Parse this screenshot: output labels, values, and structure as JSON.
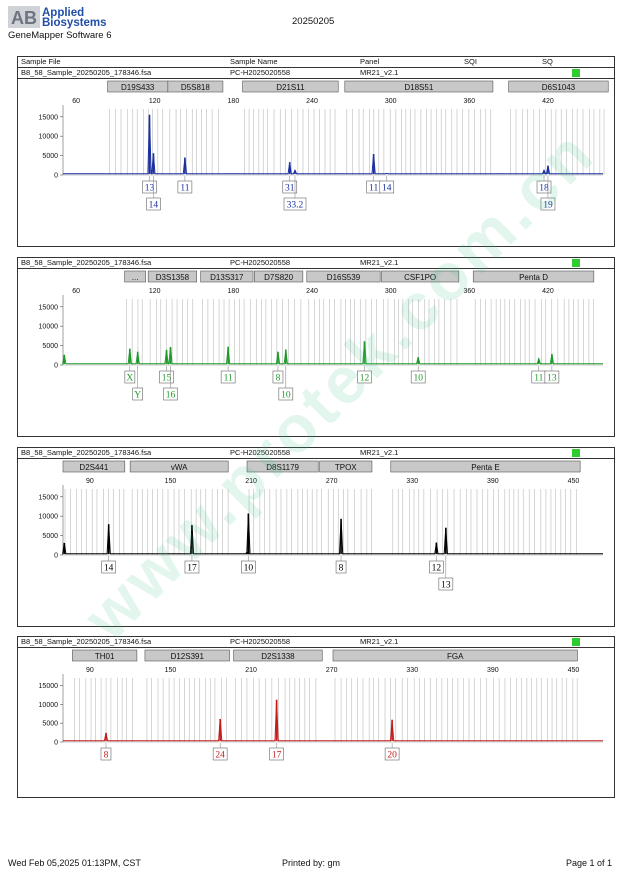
{
  "header": {
    "logo_text": "AB",
    "company_line1": "Applied",
    "company_line2": "Biosystems",
    "software": "GeneMapper Software 6",
    "run_date": "20250205"
  },
  "columns": {
    "sample_file": "Sample File",
    "sample_name": "Sample Name",
    "panel": "Panel",
    "sqi": "SQI",
    "sq": "SQ"
  },
  "sample": {
    "file": "B8_58_Sample_20250205_178346.fsa",
    "name": "PC-H2025020558",
    "panel": "MR21_v2.1",
    "sq_color": "#2ecc2e"
  },
  "chart_data": [
    {
      "type": "line",
      "dye": "blue",
      "color": "#1a2fa0",
      "xlim": [
        50,
        462
      ],
      "x_ticks": [
        60,
        120,
        180,
        240,
        300,
        360,
        420
      ],
      "ylim": [
        0,
        17000
      ],
      "y_ticks": [
        0,
        5000,
        10000,
        15000
      ],
      "markers": [
        {
          "label": "D19S433",
          "from": 84,
          "to": 130
        },
        {
          "label": "D5S818",
          "from": 130,
          "to": 172
        },
        {
          "label": "D21S11",
          "from": 187,
          "to": 260
        },
        {
          "label": "D18S51",
          "from": 265,
          "to": 378
        },
        {
          "label": "D6S1043",
          "from": 390,
          "to": 466
        }
      ],
      "peaks": [
        {
          "x": 116,
          "y": 15500
        },
        {
          "x": 119,
          "y": 5600
        },
        {
          "x": 143,
          "y": 4500
        },
        {
          "x": 223,
          "y": 3300
        },
        {
          "x": 227,
          "y": 1200
        },
        {
          "x": 287,
          "y": 5400
        },
        {
          "x": 297,
          "y": 400
        },
        {
          "x": 417,
          "y": 1200
        },
        {
          "x": 420,
          "y": 2400
        }
      ],
      "calls": [
        {
          "label": "13",
          "x": 116,
          "row": 0
        },
        {
          "label": "14",
          "x": 119,
          "row": 1
        },
        {
          "label": "11",
          "x": 143,
          "row": 0
        },
        {
          "label": "31",
          "x": 223,
          "row": 0
        },
        {
          "label": "33.2",
          "x": 227,
          "row": 1
        },
        {
          "label": "11",
          "x": 287,
          "row": 0
        },
        {
          "label": "14",
          "x": 297,
          "row": 0
        },
        {
          "label": "18",
          "x": 417,
          "row": 0
        },
        {
          "label": "19",
          "x": 420,
          "row": 1
        }
      ]
    },
    {
      "type": "line",
      "dye": "green",
      "color": "#1f9a2a",
      "xlim": [
        50,
        462
      ],
      "x_ticks": [
        60,
        120,
        180,
        240,
        300,
        360,
        420
      ],
      "ylim": [
        0,
        17000
      ],
      "y_ticks": [
        0,
        5000,
        10000,
        15000
      ],
      "markers": [
        {
          "label": "...",
          "from": 97,
          "to": 113
        },
        {
          "label": "D3S1358",
          "from": 115,
          "to": 152
        },
        {
          "label": "D13S317",
          "from": 155,
          "to": 195
        },
        {
          "label": "D7S820",
          "from": 196,
          "to": 233
        },
        {
          "label": "D16S539",
          "from": 236,
          "to": 292
        },
        {
          "label": "CSF1PO",
          "from": 293,
          "to": 352
        },
        {
          "label": "Penta D",
          "from": 363,
          "to": 455
        }
      ],
      "peaks": [
        {
          "x": 51,
          "y": 2600
        },
        {
          "x": 101,
          "y": 4200
        },
        {
          "x": 107,
          "y": 3400
        },
        {
          "x": 129,
          "y": 3900
        },
        {
          "x": 132,
          "y": 4600
        },
        {
          "x": 176,
          "y": 4700
        },
        {
          "x": 214,
          "y": 3400
        },
        {
          "x": 220,
          "y": 4000
        },
        {
          "x": 280,
          "y": 6100
        },
        {
          "x": 321,
          "y": 2000
        },
        {
          "x": 413,
          "y": 1600
        },
        {
          "x": 423,
          "y": 2800
        }
      ],
      "calls": [
        {
          "label": "X",
          "x": 101,
          "row": 0
        },
        {
          "label": "Y",
          "x": 107,
          "row": 1
        },
        {
          "label": "15",
          "x": 129,
          "row": 0
        },
        {
          "label": "16",
          "x": 132,
          "row": 1
        },
        {
          "label": "11",
          "x": 176,
          "row": 0
        },
        {
          "label": "8",
          "x": 214,
          "row": 0
        },
        {
          "label": "10",
          "x": 220,
          "row": 1
        },
        {
          "label": "12",
          "x": 280,
          "row": 0
        },
        {
          "label": "10",
          "x": 321,
          "row": 0
        },
        {
          "label": "11",
          "x": 413,
          "row": 0
        },
        {
          "label": "13",
          "x": 423,
          "row": 0
        }
      ]
    },
    {
      "type": "line",
      "dye": "black",
      "color": "#000000",
      "xlim": [
        70,
        472
      ],
      "x_ticks": [
        90,
        150,
        210,
        270,
        330,
        390,
        450
      ],
      "ylim": [
        0,
        17000
      ],
      "y_ticks": [
        0,
        5000,
        10000,
        15000
      ],
      "markers": [
        {
          "label": "D2S441",
          "from": 70,
          "to": 116
        },
        {
          "label": "vWA",
          "from": 120,
          "to": 193
        },
        {
          "label": "D8S1179",
          "from": 207,
          "to": 260
        },
        {
          "label": "TPOX",
          "from": 261,
          "to": 300
        },
        {
          "label": "Penta E",
          "from": 314,
          "to": 455
        }
      ],
      "peaks": [
        {
          "x": 71,
          "y": 3100
        },
        {
          "x": 104,
          "y": 7900
        },
        {
          "x": 166,
          "y": 7700
        },
        {
          "x": 208,
          "y": 10700
        },
        {
          "x": 207,
          "y": 700
        },
        {
          "x": 277,
          "y": 9300
        },
        {
          "x": 348,
          "y": 3200
        },
        {
          "x": 355,
          "y": 7000
        }
      ],
      "calls": [
        {
          "label": "14",
          "x": 104,
          "row": 0
        },
        {
          "label": "17",
          "x": 166,
          "row": 0
        },
        {
          "label": "10",
          "x": 208,
          "row": 0
        },
        {
          "label": "8",
          "x": 277,
          "row": 0
        },
        {
          "label": "12",
          "x": 348,
          "row": 0
        },
        {
          "label": "13",
          "x": 355,
          "row": 1
        }
      ]
    },
    {
      "type": "line",
      "dye": "red",
      "color": "#c41a1a",
      "xlim": [
        70,
        472
      ],
      "x_ticks": [
        90,
        150,
        210,
        270,
        330,
        390,
        450
      ],
      "ylim": [
        0,
        17000
      ],
      "y_ticks": [
        0,
        5000,
        10000,
        15000
      ],
      "markers": [
        {
          "label": "TH01",
          "from": 77,
          "to": 125
        },
        {
          "label": "D12S391",
          "from": 131,
          "to": 194
        },
        {
          "label": "D2S1338",
          "from": 197,
          "to": 263
        },
        {
          "label": "FGA",
          "from": 271,
          "to": 453
        }
      ],
      "peaks": [
        {
          "x": 102,
          "y": 2400
        },
        {
          "x": 187,
          "y": 6100
        },
        {
          "x": 229,
          "y": 11200
        },
        {
          "x": 315,
          "y": 5900
        }
      ],
      "calls": [
        {
          "label": "8",
          "x": 102,
          "row": 0
        },
        {
          "label": "24",
          "x": 187,
          "row": 0
        },
        {
          "label": "17",
          "x": 229,
          "row": 0
        },
        {
          "label": "20",
          "x": 315,
          "row": 0
        }
      ]
    }
  ],
  "footer": {
    "printed_on": "Wed Feb 05,2025 01:13PM, CST",
    "printed_by": "Printed by: gm",
    "page": "Page 1 of 1"
  }
}
